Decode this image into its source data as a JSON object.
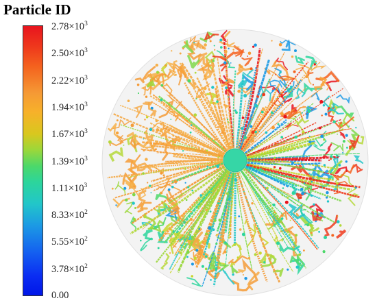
{
  "legend": {
    "title": "Particle ID",
    "ticks": [
      {
        "mantissa": "2.78×10",
        "exp": "3"
      },
      {
        "mantissa": "2.50×10",
        "exp": "3"
      },
      {
        "mantissa": "2.22×10",
        "exp": "3"
      },
      {
        "mantissa": "1.94×10",
        "exp": "3"
      },
      {
        "mantissa": "1.67×10",
        "exp": "3"
      },
      {
        "mantissa": "1.39×10",
        "exp": "3"
      },
      {
        "mantissa": "1.11×10",
        "exp": "3"
      },
      {
        "mantissa": "8.33×10",
        "exp": "2"
      },
      {
        "mantissa": "5.55×10",
        "exp": "2"
      },
      {
        "mantissa": "3.78×10",
        "exp": "2"
      },
      {
        "mantissa": "0.00",
        "exp": ""
      }
    ],
    "colormap": [
      "#0016e8",
      "#1460f0",
      "#22c6c9",
      "#2cd59c",
      "#4cd86a",
      "#9bd73a",
      "#f7b12a",
      "#f59a35",
      "#f4621e",
      "#e8141e"
    ]
  },
  "plot": {
    "description_colors": {
      "hub": "#36d6a6",
      "rim": "#d9d9d9"
    }
  }
}
